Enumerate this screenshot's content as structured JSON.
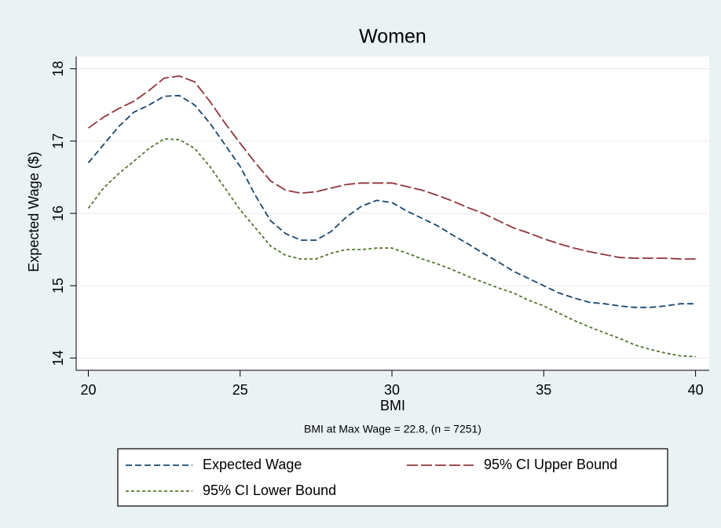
{
  "chart_data": {
    "type": "line",
    "title": "Women",
    "xlabel": "BMI",
    "ylabel": "Expected Wage ($)",
    "note": "BMI at Max Wage = 22.8, (n = 7251)",
    "x": [
      20,
      20.5,
      21,
      21.5,
      22,
      22.5,
      23,
      23.5,
      24,
      24.5,
      25,
      25.5,
      26,
      26.5,
      27,
      27.5,
      28,
      28.5,
      29,
      29.5,
      30,
      30.5,
      31,
      31.5,
      32,
      32.5,
      33,
      33.5,
      34,
      34.5,
      35,
      35.5,
      36,
      36.5,
      37,
      37.5,
      38,
      38.5,
      39,
      39.5,
      40
    ],
    "series": [
      {
        "name": "Expected Wage",
        "color": "#1a476f",
        "dash": "8,4",
        "values": [
          16.7,
          16.95,
          17.2,
          17.4,
          17.5,
          17.62,
          17.63,
          17.5,
          17.25,
          16.95,
          16.65,
          16.25,
          15.9,
          15.72,
          15.63,
          15.63,
          15.75,
          15.95,
          16.1,
          16.18,
          16.15,
          16.03,
          15.93,
          15.83,
          15.7,
          15.58,
          15.45,
          15.33,
          15.2,
          15.1,
          15.0,
          14.9,
          14.83,
          14.77,
          14.75,
          14.72,
          14.7,
          14.7,
          14.72,
          14.75,
          14.75
        ]
      },
      {
        "name": "95% CI Upper Bound",
        "color": "#90353b",
        "dash": "14,4",
        "values": [
          17.18,
          17.33,
          17.45,
          17.55,
          17.7,
          17.87,
          17.9,
          17.82,
          17.55,
          17.25,
          16.97,
          16.7,
          16.45,
          16.32,
          16.28,
          16.3,
          16.35,
          16.4,
          16.42,
          16.42,
          16.42,
          16.37,
          16.32,
          16.25,
          16.17,
          16.08,
          16.0,
          15.9,
          15.8,
          15.73,
          15.65,
          15.58,
          15.52,
          15.47,
          15.43,
          15.39,
          15.38,
          15.38,
          15.38,
          15.37,
          15.37
        ]
      },
      {
        "name": "95% CI Lower Bound",
        "color": "#55752f",
        "dash": "4,3",
        "values": [
          16.07,
          16.35,
          16.55,
          16.72,
          16.9,
          17.03,
          17.02,
          16.9,
          16.65,
          16.35,
          16.05,
          15.8,
          15.55,
          15.42,
          15.37,
          15.37,
          15.45,
          15.5,
          15.5,
          15.52,
          15.52,
          15.45,
          15.37,
          15.3,
          15.22,
          15.13,
          15.05,
          14.97,
          14.9,
          14.8,
          14.72,
          14.62,
          14.52,
          14.43,
          14.35,
          14.27,
          14.18,
          14.12,
          14.07,
          14.03,
          14.02
        ]
      }
    ],
    "xlim": [
      19.6,
      40.45
    ],
    "ylim": [
      13.83,
      18.17
    ],
    "xticks": [
      20,
      25,
      30,
      35,
      40
    ],
    "yticks": [
      14,
      15,
      16,
      17,
      18
    ],
    "grid": true
  }
}
